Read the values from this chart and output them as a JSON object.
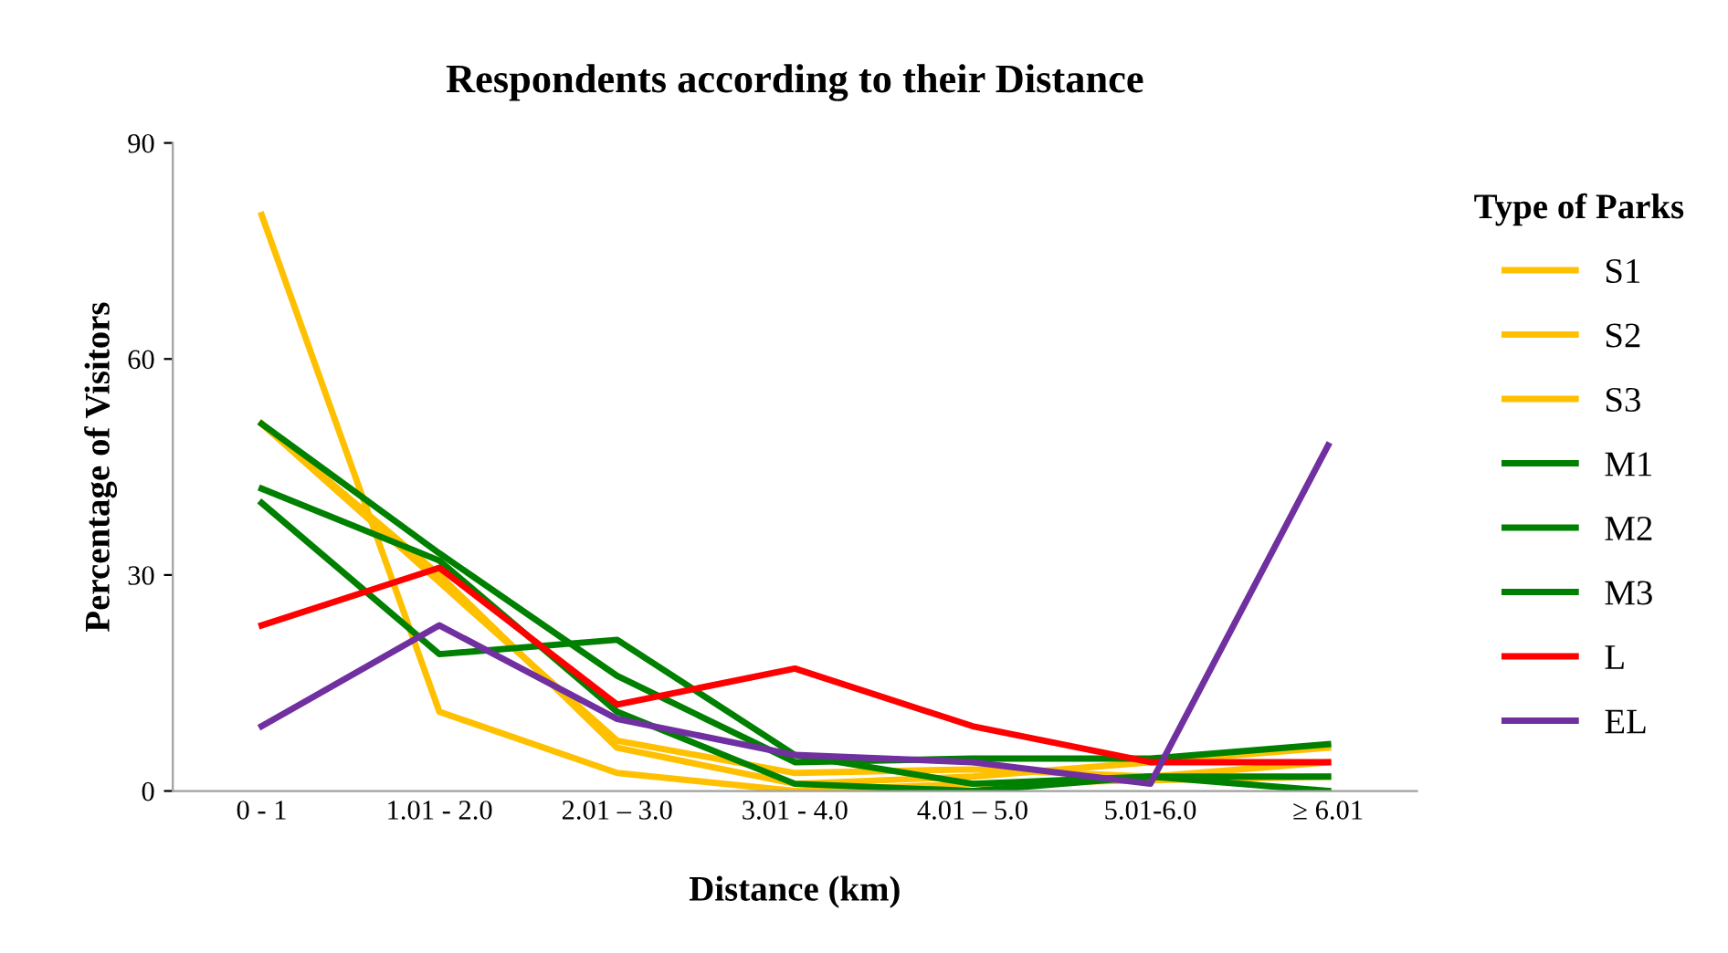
{
  "chart_data": {
    "type": "line",
    "title": "Respondents according to their Distance",
    "xlabel": "Distance (km)",
    "ylabel": "Percentage of Visitors",
    "legend_title": "Type of Parks",
    "legend": "right",
    "categories": [
      "0 - 1",
      "1.01 - 2.0",
      "2.01 – 3.0",
      "3.01 - 4.0",
      "4.01 – 5.0",
      "5.01-6.0",
      "≥ 6.01"
    ],
    "ylim": [
      0,
      90
    ],
    "yticks": [
      0,
      30,
      60,
      90
    ],
    "grid": false,
    "series": [
      {
        "name": "S1",
        "color": "#ffc000",
        "values": [
          80,
          11,
          2.5,
          0,
          1,
          1.5,
          2
        ]
      },
      {
        "name": "S2",
        "color": "#ffc000",
        "values": [
          51,
          30,
          6,
          1,
          2,
          4,
          6
        ]
      },
      {
        "name": "S3",
        "color": "#ffc000",
        "values": [
          51,
          29,
          7,
          2.5,
          3,
          2,
          4
        ]
      },
      {
        "name": "M1",
        "color": "#008000",
        "values": [
          51,
          33,
          16,
          4,
          4.5,
          4.5,
          6.5
        ]
      },
      {
        "name": "M2",
        "color": "#008000",
        "values": [
          42,
          32,
          11,
          1,
          0,
          2,
          0
        ]
      },
      {
        "name": "M3",
        "color": "#008000",
        "values": [
          40,
          19,
          21,
          5,
          1,
          2,
          2
        ]
      },
      {
        "name": "L",
        "color": "#ff0000",
        "values": [
          23,
          31,
          12,
          17,
          9,
          4,
          4
        ]
      },
      {
        "name": "EL",
        "color": "#7030a0",
        "values": [
          9,
          23,
          10,
          5,
          4,
          1,
          48
        ]
      }
    ]
  }
}
